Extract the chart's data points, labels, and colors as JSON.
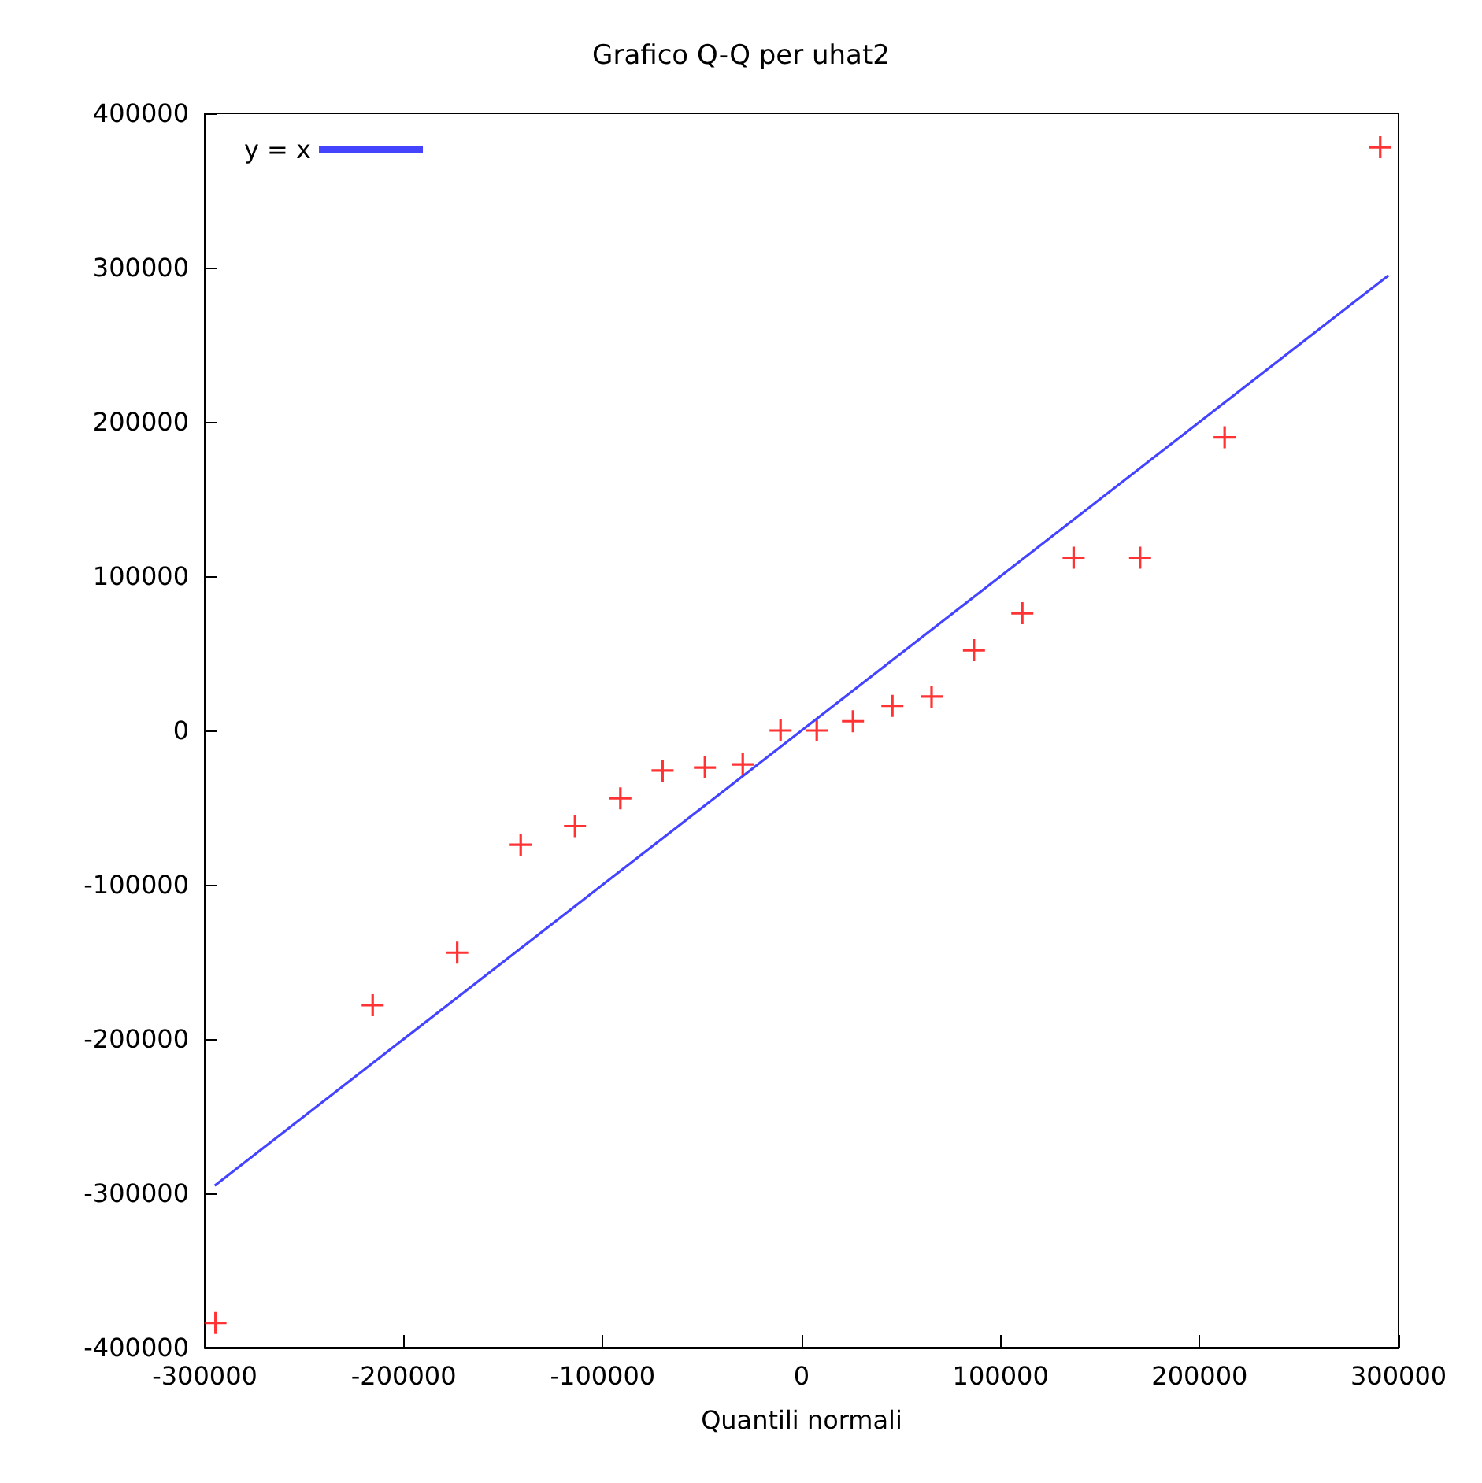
{
  "chart_data": {
    "type": "scatter",
    "title": "Grafico Q-Q per uhat2",
    "xlabel": "Quantili normali",
    "xlim": [
      -300000,
      300000
    ],
    "xticks": [
      -300000,
      -200000,
      -100000,
      0,
      100000,
      200000,
      300000
    ],
    "ylim": [
      -400000,
      400000
    ],
    "yticks": [
      -400000,
      -300000,
      -200000,
      -100000,
      0,
      100000,
      200000,
      300000,
      400000
    ],
    "grid": false,
    "legend": "top left",
    "marker": "cross",
    "series": [
      {
        "color": "#ff0000",
        "x": [
          -294600,
          -215600,
          -173100,
          -141200,
          -113900,
          -91100,
          -69900,
          -48600,
          -29600,
          -10600,
          7600,
          25800,
          45600,
          65300,
          86600,
          110900,
          136700,
          170100,
          212600,
          290800
        ],
        "values": [
          -384000,
          -178000,
          -144000,
          -74000,
          -62000,
          -44000,
          -26000,
          -24000,
          -22000,
          0,
          0,
          6000,
          16000,
          22000,
          52000,
          76000,
          112000,
          112000,
          190000,
          378000
        ]
      },
      {
        "type": "line",
        "name": "y = x",
        "color": "#4444ff",
        "marker": "none",
        "line_style": "solid",
        "x": [
          -295000,
          295000
        ],
        "values": [
          -295000,
          295000
        ]
      }
    ]
  }
}
